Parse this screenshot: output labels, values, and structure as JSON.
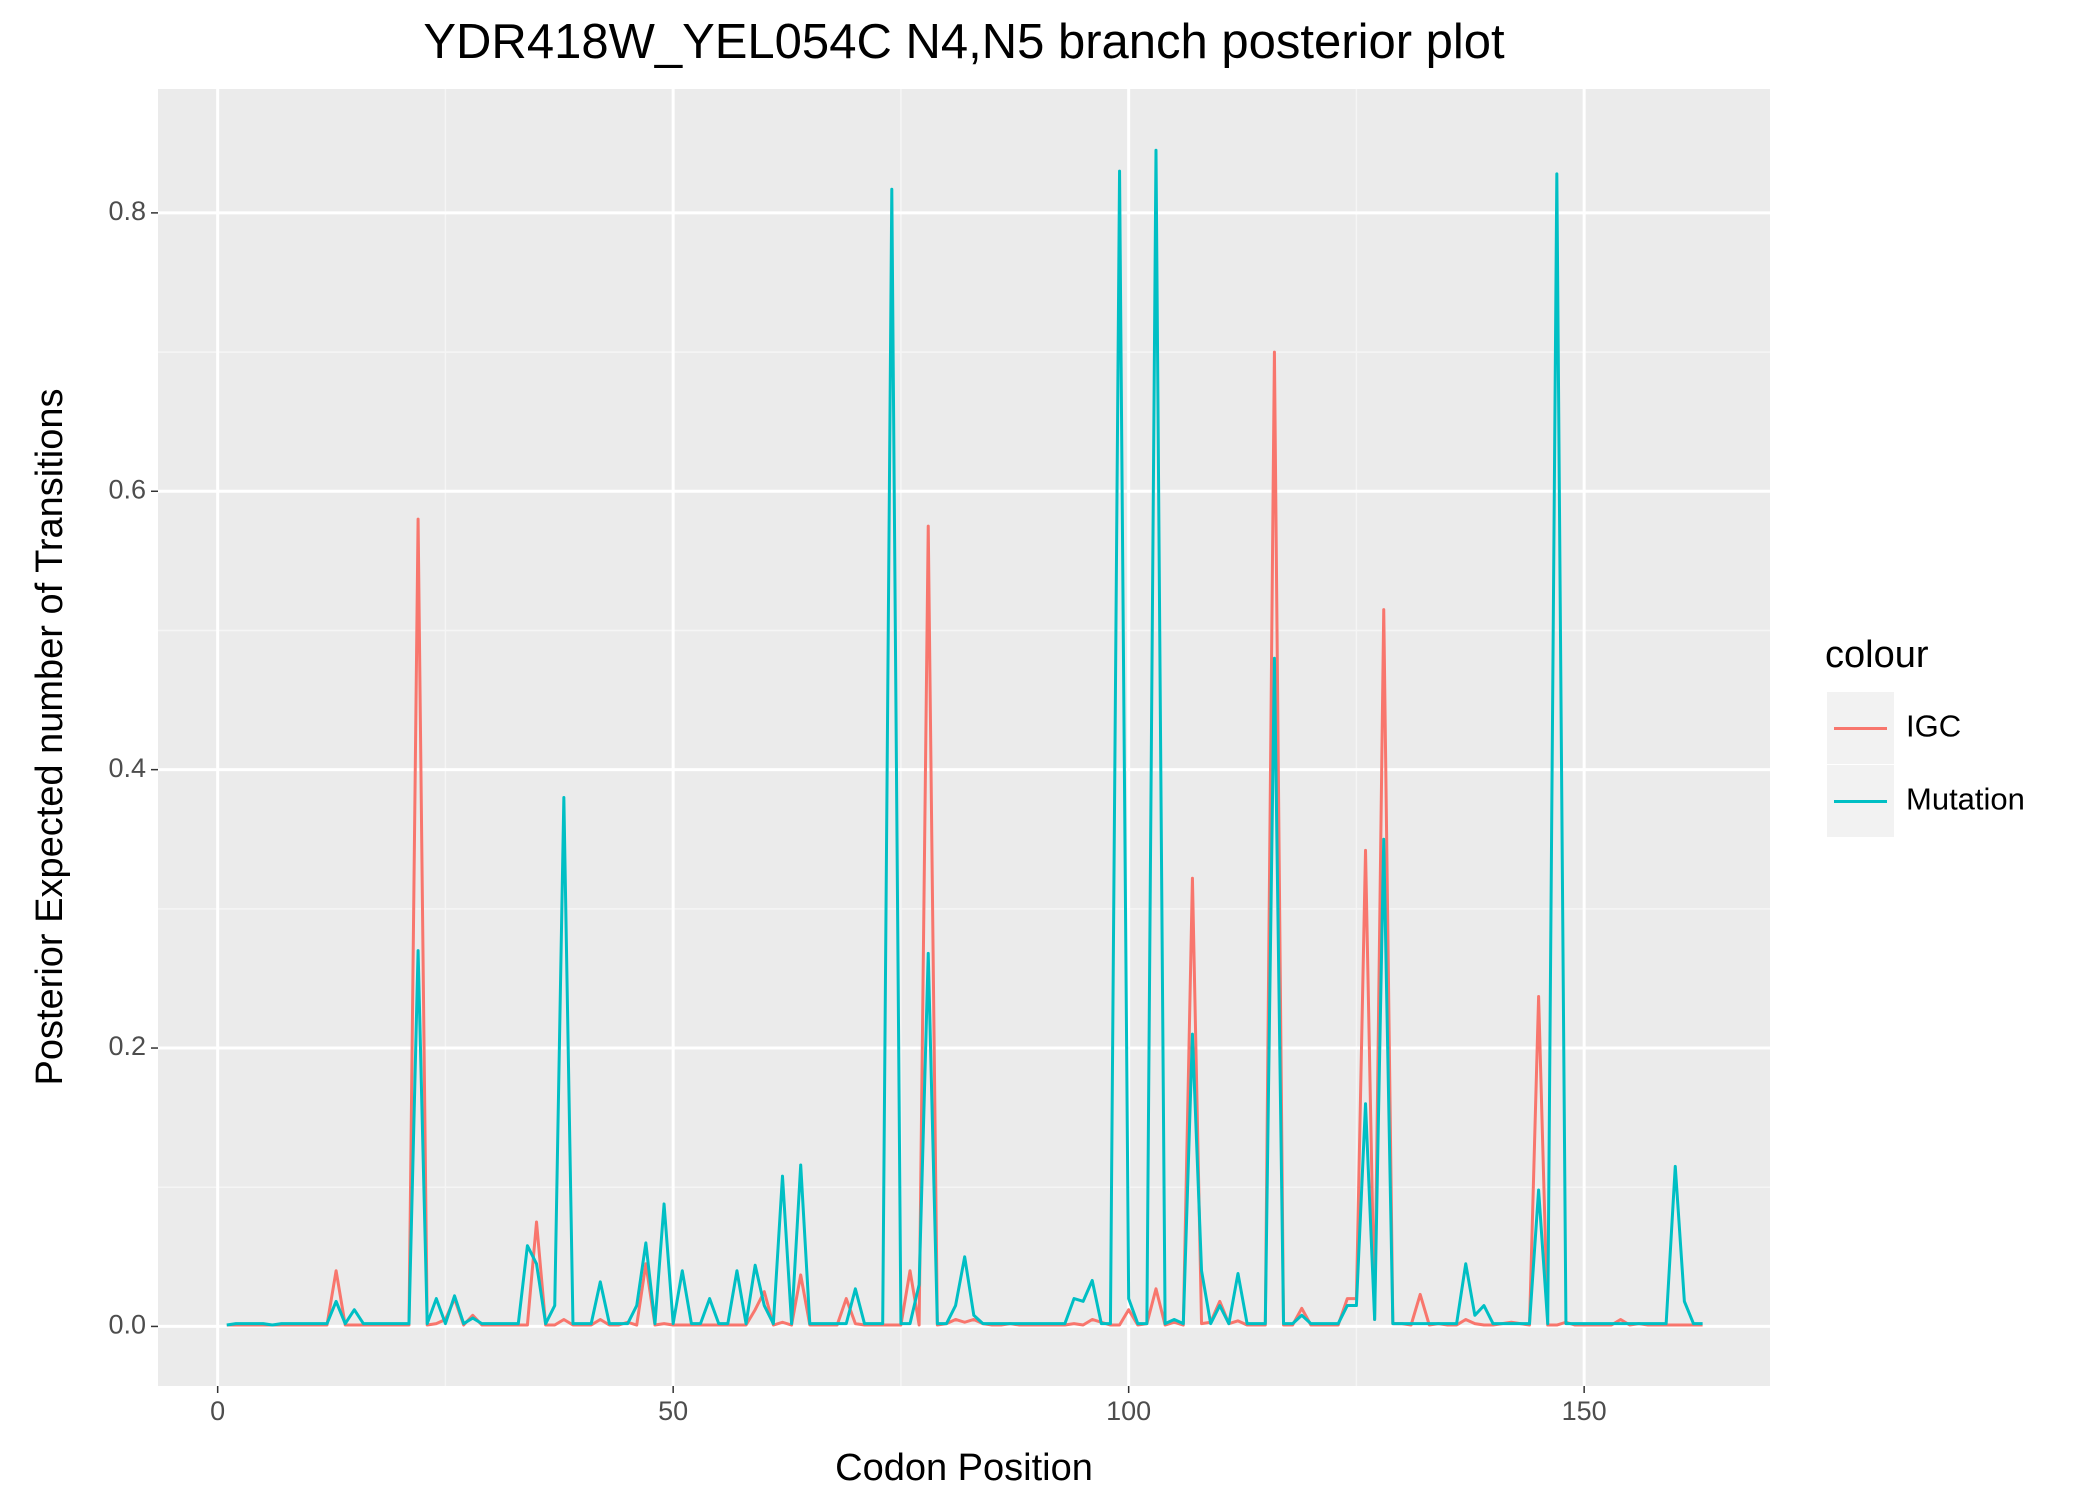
{
  "chart_data": {
    "type": "line",
    "title": "YDR418W_YEL054C N4,N5 branch posterior plot",
    "x_label": "Codon Position",
    "y_label": "Posterior Expected number of Transitions",
    "legend_title": "colour",
    "legend_position": "right",
    "grid": true,
    "xlim": [
      -6.55,
      170.4
    ],
    "ylim": [
      -0.0428,
      0.889
    ],
    "xticks": [
      0,
      50,
      100,
      150
    ],
    "yticks": [
      {
        "value": 0,
        "label": "0.0"
      },
      {
        "value": 0.2,
        "label": "0.2"
      },
      {
        "value": 0.4,
        "label": "0.4"
      },
      {
        "value": 0.6,
        "label": "0.6"
      },
      {
        "value": 0.8,
        "label": "0.8"
      }
    ],
    "x": [
      1,
      2,
      3,
      4,
      5,
      6,
      7,
      8,
      9,
      10,
      11,
      12,
      13,
      14,
      15,
      16,
      17,
      18,
      19,
      20,
      21,
      22,
      23,
      24,
      25,
      26,
      27,
      28,
      29,
      30,
      31,
      32,
      33,
      34,
      35,
      36,
      37,
      38,
      39,
      40,
      41,
      42,
      43,
      44,
      45,
      46,
      47,
      48,
      49,
      50,
      51,
      52,
      53,
      54,
      55,
      56,
      57,
      58,
      59,
      60,
      61,
      62,
      63,
      64,
      65,
      66,
      67,
      68,
      69,
      70,
      71,
      72,
      73,
      74,
      75,
      76,
      77,
      78,
      79,
      80,
      81,
      82,
      83,
      84,
      85,
      86,
      87,
      88,
      89,
      90,
      91,
      92,
      93,
      94,
      95,
      96,
      97,
      98,
      99,
      100,
      101,
      102,
      103,
      104,
      105,
      106,
      107,
      108,
      109,
      110,
      111,
      112,
      113,
      114,
      115,
      116,
      117,
      118,
      119,
      120,
      121,
      122,
      123,
      124,
      125,
      126,
      127,
      128,
      129,
      130,
      131,
      132,
      133,
      134,
      135,
      136,
      137,
      138,
      139,
      140,
      141,
      142,
      143,
      144,
      145,
      146,
      147,
      148,
      149,
      150,
      151,
      152,
      153,
      154,
      155,
      156,
      157,
      158,
      159,
      160,
      161,
      162,
      163
    ],
    "series": [
      {
        "name": "IGC",
        "color": "#F8766D",
        "values": [
          0.001,
          0.001,
          0.001,
          0.001,
          0.001,
          0.001,
          0.001,
          0.001,
          0.001,
          0.001,
          0.001,
          0.001,
          0.04,
          0.001,
          0.001,
          0.001,
          0.001,
          0.001,
          0.001,
          0.001,
          0.001,
          0.58,
          0.001,
          0.002,
          0.005,
          0.02,
          0.001,
          0.008,
          0.001,
          0.001,
          0.001,
          0.001,
          0.001,
          0.001,
          0.075,
          0.001,
          0.001,
          0.005,
          0.001,
          0.001,
          0.001,
          0.005,
          0.001,
          0.001,
          0.003,
          0.001,
          0.045,
          0.001,
          0.002,
          0.001,
          0.001,
          0.001,
          0.001,
          0.001,
          0.001,
          0.001,
          0.001,
          0.001,
          0.012,
          0.025,
          0.001,
          0.003,
          0.001,
          0.037,
          0.001,
          0.001,
          0.001,
          0.001,
          0.02,
          0.002,
          0.001,
          0.001,
          0.001,
          0.001,
          0.001,
          0.04,
          0.001,
          0.575,
          0.001,
          0.002,
          0.005,
          0.003,
          0.005,
          0.002,
          0.001,
          0.001,
          0.002,
          0.001,
          0.001,
          0.001,
          0.001,
          0.001,
          0.001,
          0.002,
          0.001,
          0.005,
          0.003,
          0.001,
          0.001,
          0.012,
          0.001,
          0.002,
          0.027,
          0.001,
          0.003,
          0.001,
          0.322,
          0.002,
          0.003,
          0.018,
          0.002,
          0.004,
          0.001,
          0.001,
          0.001,
          0.7,
          0.001,
          0.001,
          0.013,
          0.001,
          0.001,
          0.001,
          0.001,
          0.02,
          0.02,
          0.342,
          0.005,
          0.515,
          0.002,
          0.002,
          0.001,
          0.023,
          0.001,
          0.002,
          0.001,
          0.001,
          0.005,
          0.002,
          0.001,
          0.001,
          0.002,
          0.003,
          0.002,
          0.001,
          0.237,
          0.001,
          0.001,
          0.003,
          0.001,
          0.001,
          0.001,
          0.001,
          0.001,
          0.005,
          0.001,
          0.002,
          0.001,
          0.001,
          0.001,
          0.001,
          0.001,
          0.001,
          0.001
        ]
      },
      {
        "name": "Mutation",
        "color": "#00BFC4",
        "values": [
          0.001,
          0.002,
          0.002,
          0.002,
          0.002,
          0.001,
          0.002,
          0.002,
          0.002,
          0.002,
          0.002,
          0.002,
          0.018,
          0.002,
          0.012,
          0.002,
          0.002,
          0.002,
          0.002,
          0.002,
          0.002,
          0.27,
          0.002,
          0.02,
          0.002,
          0.022,
          0.002,
          0.006,
          0.002,
          0.002,
          0.002,
          0.002,
          0.002,
          0.058,
          0.045,
          0.002,
          0.015,
          0.38,
          0.002,
          0.002,
          0.002,
          0.032,
          0.002,
          0.002,
          0.002,
          0.015,
          0.06,
          0.002,
          0.088,
          0.002,
          0.04,
          0.002,
          0.002,
          0.02,
          0.002,
          0.002,
          0.04,
          0.002,
          0.044,
          0.015,
          0.002,
          0.108,
          0.002,
          0.116,
          0.002,
          0.002,
          0.002,
          0.002,
          0.002,
          0.027,
          0.002,
          0.002,
          0.002,
          0.817,
          0.002,
          0.002,
          0.03,
          0.268,
          0.002,
          0.002,
          0.015,
          0.05,
          0.008,
          0.002,
          0.002,
          0.002,
          0.002,
          0.002,
          0.002,
          0.002,
          0.002,
          0.002,
          0.002,
          0.02,
          0.018,
          0.033,
          0.002,
          0.002,
          0.83,
          0.02,
          0.002,
          0.002,
          0.845,
          0.002,
          0.005,
          0.002,
          0.21,
          0.04,
          0.002,
          0.015,
          0.002,
          0.038,
          0.002,
          0.002,
          0.002,
          0.48,
          0.002,
          0.002,
          0.008,
          0.002,
          0.002,
          0.002,
          0.002,
          0.015,
          0.015,
          0.16,
          0.005,
          0.35,
          0.002,
          0.002,
          0.002,
          0.002,
          0.002,
          0.002,
          0.002,
          0.002,
          0.045,
          0.008,
          0.015,
          0.002,
          0.002,
          0.002,
          0.002,
          0.002,
          0.098,
          0.002,
          0.828,
          0.002,
          0.002,
          0.002,
          0.002,
          0.002,
          0.002,
          0.002,
          0.002,
          0.002,
          0.002,
          0.002,
          0.002,
          0.115,
          0.018,
          0.002,
          0.002
        ]
      }
    ]
  }
}
